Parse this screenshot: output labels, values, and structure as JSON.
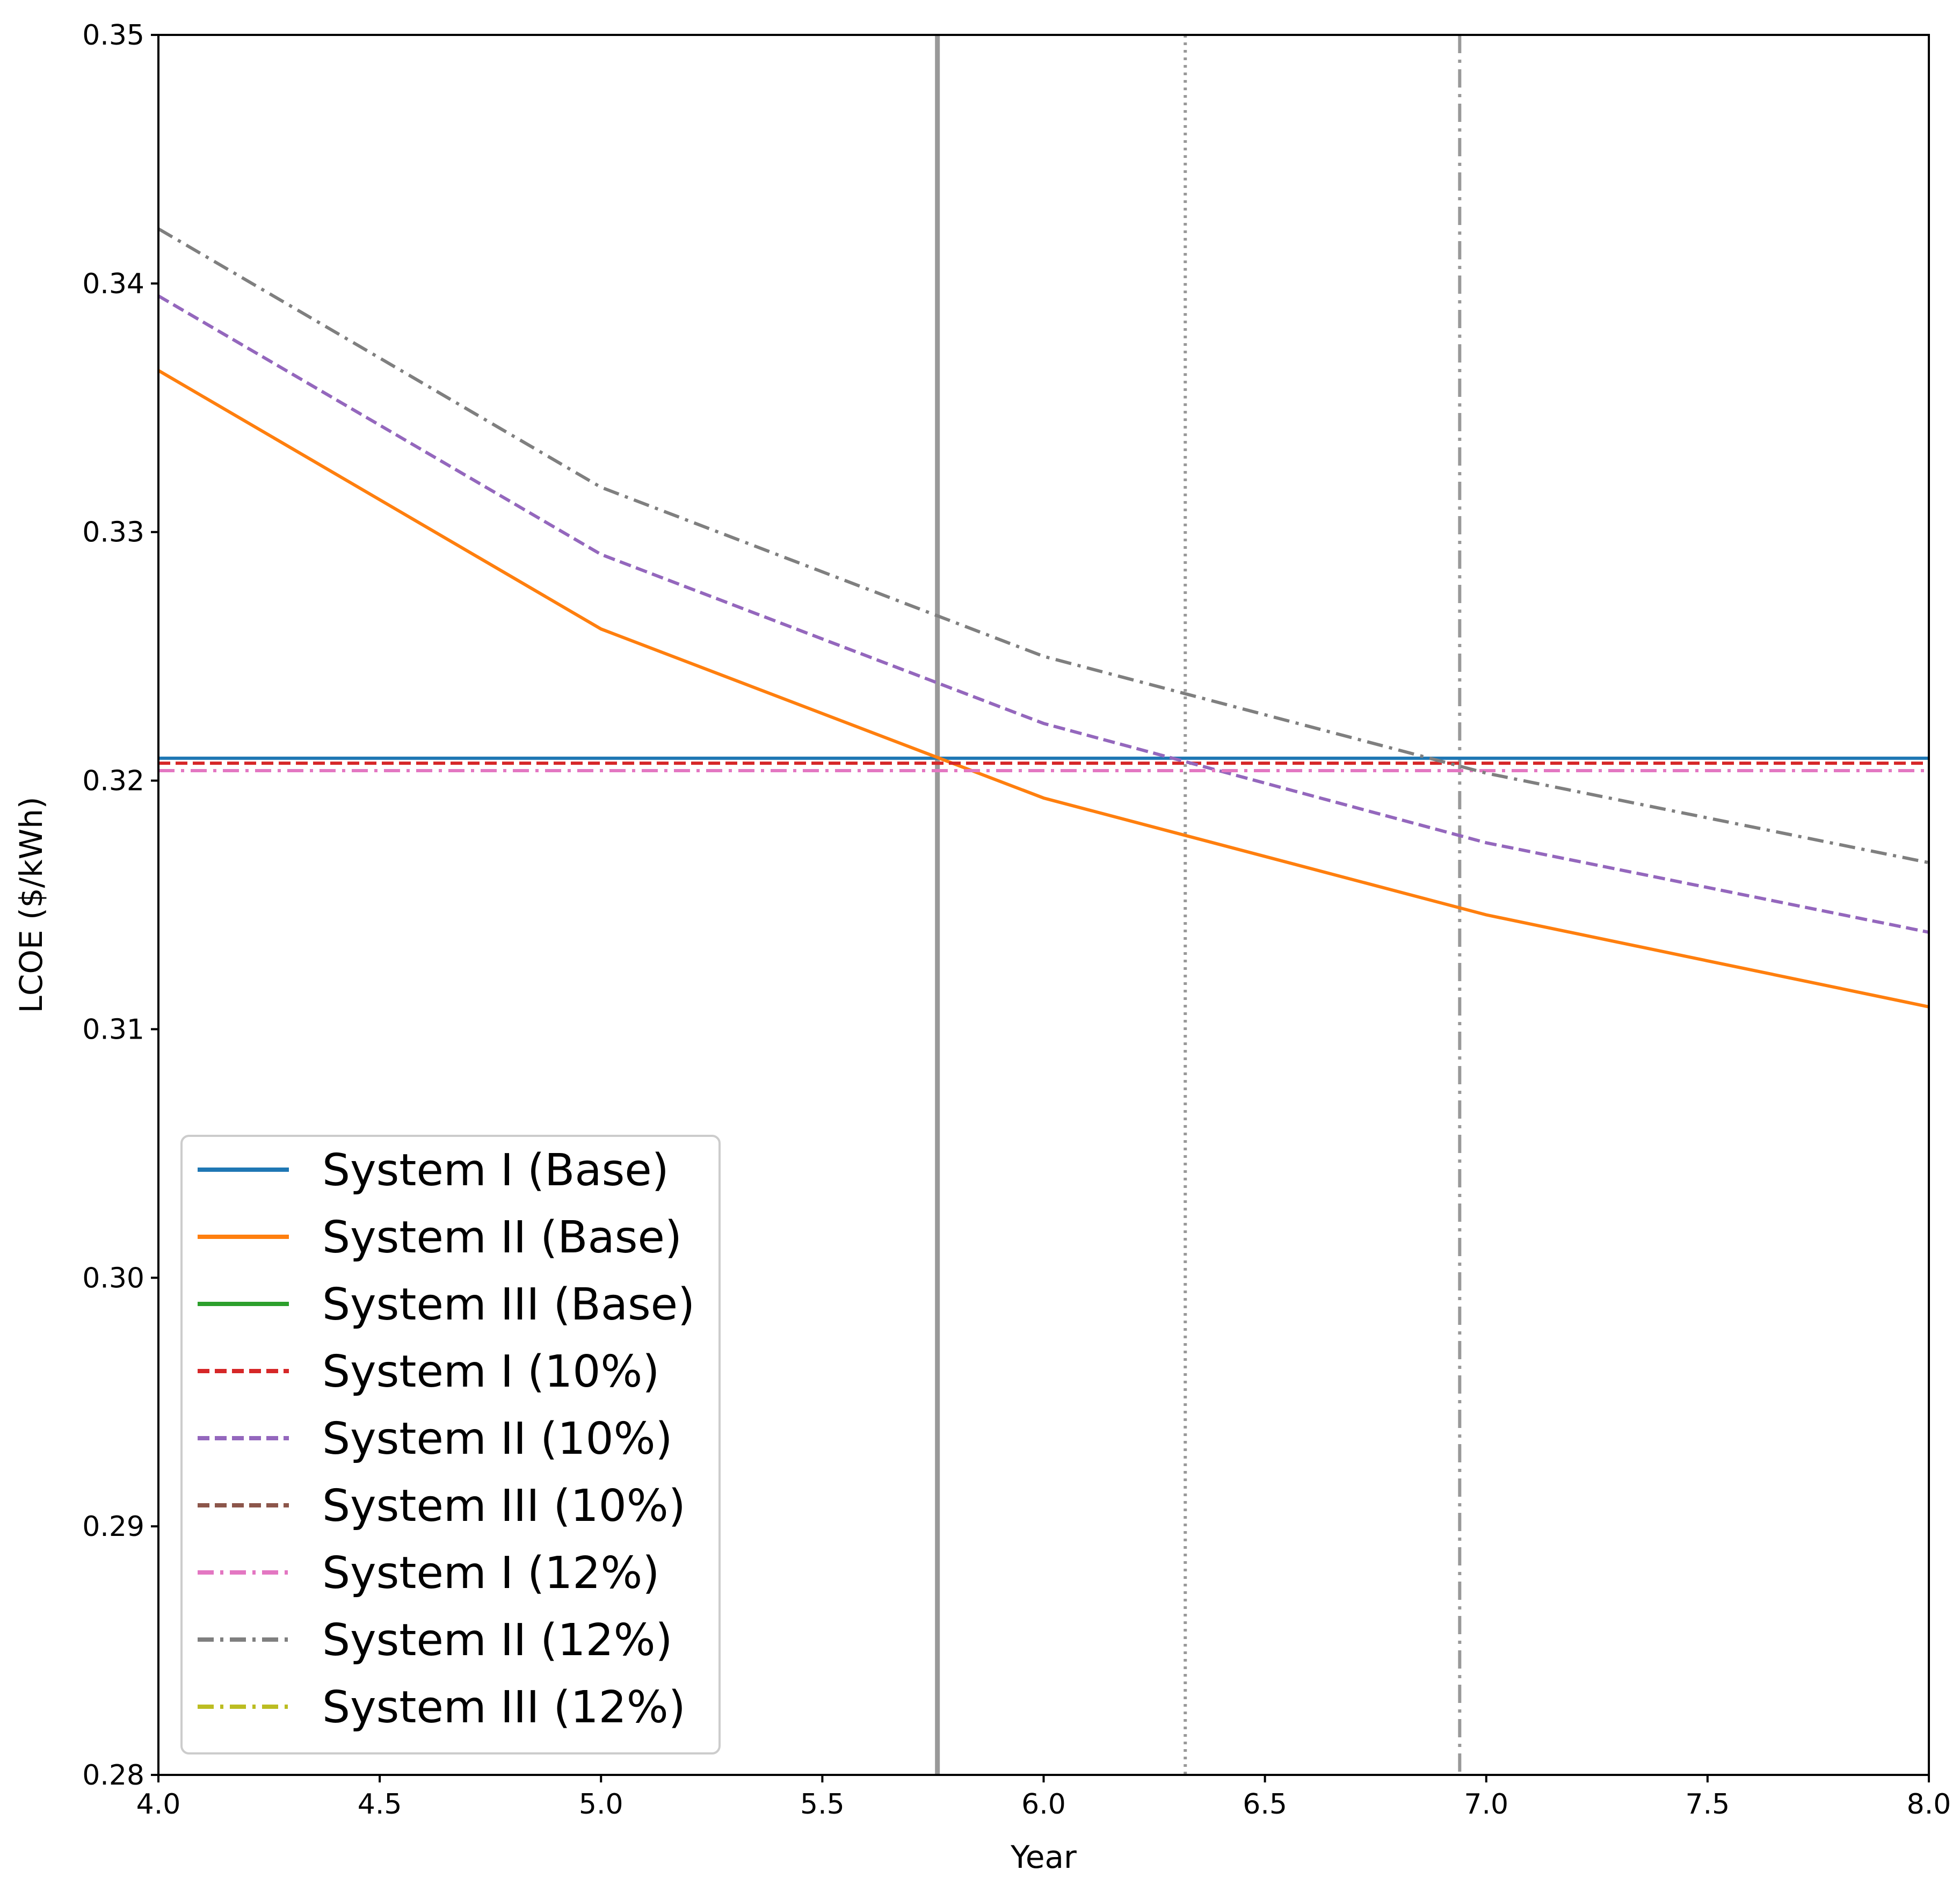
{
  "chart_data": {
    "type": "line",
    "title": "",
    "xlabel": "Year",
    "ylabel": "LCOE ($/kWh)",
    "xlim": [
      4.0,
      8.0
    ],
    "ylim": [
      0.28,
      0.35
    ],
    "xticks": [
      4.0,
      4.5,
      5.0,
      5.5,
      6.0,
      6.5,
      7.0,
      7.5,
      8.0
    ],
    "xtick_labels": [
      "4.0",
      "4.5",
      "5.0",
      "5.5",
      "6.0",
      "6.5",
      "7.0",
      "7.5",
      "8.0"
    ],
    "yticks": [
      0.28,
      0.29,
      0.3,
      0.31,
      0.32,
      0.33,
      0.34,
      0.35
    ],
    "ytick_labels": [
      "0.28",
      "0.29",
      "0.30",
      "0.31",
      "0.32",
      "0.33",
      "0.34",
      "0.35"
    ],
    "grid": false,
    "legend_position": "lower-left",
    "series": [
      {
        "name": "System I (Base)",
        "color": "#1f77b4",
        "style": "solid",
        "x": [
          4,
          5,
          6,
          7,
          8
        ],
        "values": [
          0.3209,
          0.3209,
          0.3209,
          0.3209,
          0.3209
        ]
      },
      {
        "name": "System II (Base)",
        "color": "#ff7f0e",
        "style": "solid",
        "x": [
          4,
          5,
          6,
          7,
          8
        ],
        "values": [
          0.3365,
          0.3261,
          0.3193,
          0.3146,
          0.3109
        ]
      },
      {
        "name": "System III (Base)",
        "color": "#2ca02c",
        "style": "solid",
        "x": [],
        "values": []
      },
      {
        "name": "System I (10%)",
        "color": "#d62728",
        "style": "dashed",
        "x": [
          4,
          5,
          6,
          7,
          8
        ],
        "values": [
          0.3207,
          0.3207,
          0.3207,
          0.3207,
          0.3207
        ]
      },
      {
        "name": "System II (10%)",
        "color": "#9467bd",
        "style": "dashed",
        "x": [
          4,
          5,
          6,
          7,
          8
        ],
        "values": [
          0.3395,
          0.3291,
          0.3223,
          0.3175,
          0.3139
        ]
      },
      {
        "name": "System III (10%)",
        "color": "#8c564b",
        "style": "dashed",
        "x": [],
        "values": []
      },
      {
        "name": "System I (12%)",
        "color": "#e377c2",
        "style": "dashdot",
        "x": [
          4,
          5,
          6,
          7,
          8
        ],
        "values": [
          0.3204,
          0.3204,
          0.3204,
          0.3204,
          0.3204
        ]
      },
      {
        "name": "System II (12%)",
        "color": "#7f7f7f",
        "style": "dashdot",
        "x": [
          4,
          5,
          6,
          7,
          8
        ],
        "values": [
          0.3422,
          0.3318,
          0.325,
          0.3203,
          0.3167
        ]
      },
      {
        "name": "System III (12%)",
        "color": "#bcbd22",
        "style": "dashdot",
        "x": [],
        "values": []
      }
    ],
    "vlines": [
      {
        "x": 5.76,
        "style": "solid",
        "color": "#999999"
      },
      {
        "x": 6.32,
        "style": "dotted",
        "color": "#999999"
      },
      {
        "x": 6.94,
        "style": "dashdot",
        "color": "#999999"
      }
    ]
  }
}
